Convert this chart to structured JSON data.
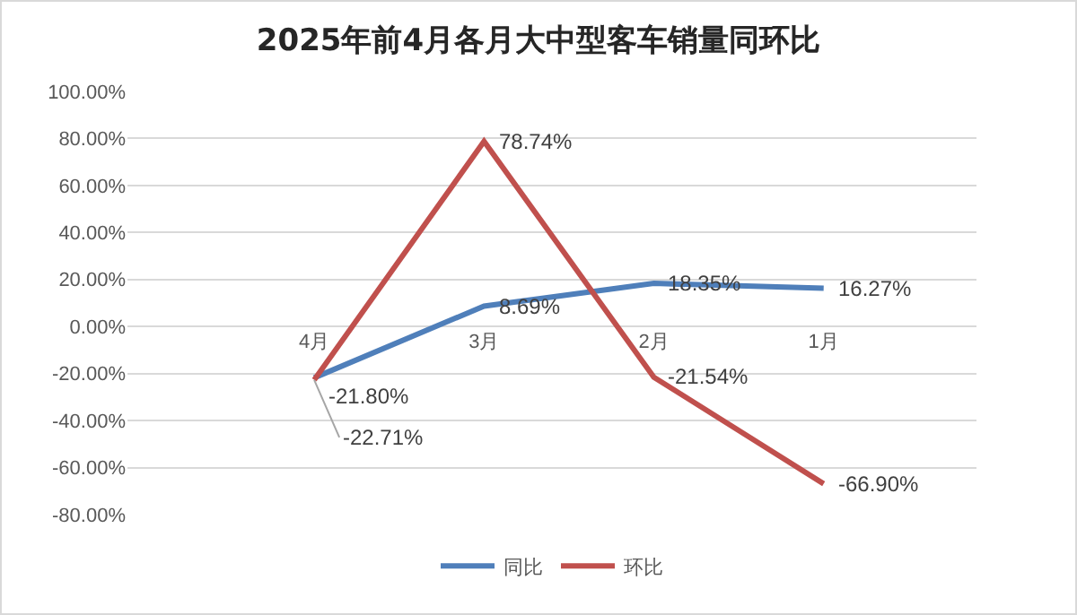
{
  "chart_data": {
    "type": "line",
    "title": "2025年前4月各月大中型客车销量同环比",
    "categories": [
      "4月",
      "3月",
      "2月",
      "1月"
    ],
    "series": [
      {
        "name": "同比",
        "color": "#4f7fba",
        "values": [
          -21.8,
          8.69,
          18.35,
          16.27
        ],
        "value_labels": [
          "-21.80%",
          "8.69%",
          "18.35%",
          "16.27%"
        ]
      },
      {
        "name": "环比",
        "color": "#c0504d",
        "values": [
          -22.71,
          78.74,
          -21.54,
          -66.9
        ],
        "value_labels": [
          "-22.71%",
          "78.74%",
          "-21.54%",
          "-66.90%"
        ]
      }
    ],
    "ylim": [
      -80,
      100
    ],
    "yticks": [
      {
        "value": -80,
        "label": "-80.00%"
      },
      {
        "value": -60,
        "label": "-60.00%"
      },
      {
        "value": -40,
        "label": "-40.00%"
      },
      {
        "value": -20,
        "label": "-20.00%"
      },
      {
        "value": 0,
        "label": "0.00%"
      },
      {
        "value": 20,
        "label": "20.00%"
      },
      {
        "value": 40,
        "label": "40.00%"
      },
      {
        "value": 60,
        "label": "60.00%"
      },
      {
        "value": 80,
        "label": "80.00%"
      },
      {
        "value": 100,
        "label": "100.00%"
      }
    ],
    "grid": "y",
    "legend": "bottom",
    "marker": "none",
    "line_style": "solid"
  }
}
